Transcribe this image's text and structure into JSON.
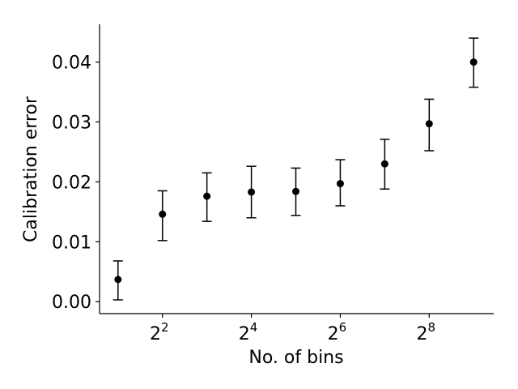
{
  "chart_data": {
    "type": "scatter",
    "title": "",
    "xlabel": "No. of bins",
    "ylabel": "Calibration error",
    "x_scale": "log2",
    "x": [
      2,
      4,
      8,
      16,
      32,
      64,
      128,
      256,
      512
    ],
    "y": [
      0.0037,
      0.0146,
      0.0176,
      0.0183,
      0.0184,
      0.0197,
      0.023,
      0.0297,
      0.04
    ],
    "error_low": [
      0.0034,
      0.0044,
      0.0042,
      0.0043,
      0.004,
      0.0037,
      0.0042,
      0.0045,
      0.0042
    ],
    "error_high": [
      0.0031,
      0.0039,
      0.0039,
      0.0043,
      0.0039,
      0.004,
      0.0041,
      0.0041,
      0.004
    ],
    "xlim": [
      1.5,
      700
    ],
    "ylim": [
      -0.002,
      0.0463
    ],
    "xticks": [
      {
        "value": 4,
        "base": "2",
        "exp": "2"
      },
      {
        "value": 16,
        "base": "2",
        "exp": "4"
      },
      {
        "value": 64,
        "base": "2",
        "exp": "6"
      },
      {
        "value": 256,
        "base": "2",
        "exp": "8"
      }
    ],
    "yticks": [
      {
        "value": 0.0,
        "label": "0.00"
      },
      {
        "value": 0.01,
        "label": "0.01"
      },
      {
        "value": 0.02,
        "label": "0.02"
      },
      {
        "value": 0.03,
        "label": "0.03"
      },
      {
        "value": 0.04,
        "label": "0.04"
      }
    ],
    "grid": false,
    "marker_color": "#000000"
  }
}
